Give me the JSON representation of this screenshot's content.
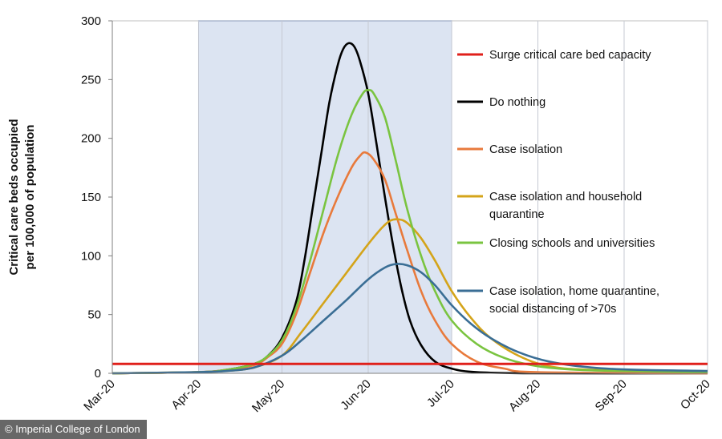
{
  "credit": "© Imperial College of London",
  "chart_data": {
    "type": "line",
    "title": "",
    "xlabel": "",
    "ylabel": [
      "Critical care beds occupied",
      "per 100,000 of population"
    ],
    "ylim": [
      0,
      300
    ],
    "yticks": [
      0,
      50,
      100,
      150,
      200,
      250,
      300
    ],
    "xlim": [
      "2020-03-01",
      "2020-10-01"
    ],
    "xticks": [
      {
        "label": "Mar-20",
        "date": "2020-03-01"
      },
      {
        "label": "Apr-20",
        "date": "2020-04-01"
      },
      {
        "label": "May-20",
        "date": "2020-05-01"
      },
      {
        "label": "Jun-20",
        "date": "2020-06-01"
      },
      {
        "label": "Jul-20",
        "date": "2020-07-01"
      },
      {
        "label": "Aug-20",
        "date": "2020-08-01"
      },
      {
        "label": "Sep-20",
        "date": "2020-09-01"
      },
      {
        "label": "Oct-20",
        "date": "2020-10-01"
      }
    ],
    "grid": {
      "vertical": true,
      "horizontal": false
    },
    "shaded_region": {
      "start": "2020-04-01",
      "end": "2020-07-01",
      "color": "#dce4f2"
    },
    "legend_position": "right",
    "series": [
      {
        "name": "Surge critical care bed capacity",
        "color": "#e0201b",
        "kind": "hline",
        "y": 8
      },
      {
        "name": "Do nothing",
        "color": "#000000",
        "points": [
          [
            "2020-03-01",
            0
          ],
          [
            "2020-04-01",
            1
          ],
          [
            "2020-04-11",
            3
          ],
          [
            "2020-04-21",
            8
          ],
          [
            "2020-04-26",
            15
          ],
          [
            "2020-05-01",
            30
          ],
          [
            "2020-05-06",
            60
          ],
          [
            "2020-05-09",
            95
          ],
          [
            "2020-05-12",
            140
          ],
          [
            "2020-05-15",
            185
          ],
          [
            "2020-05-18",
            230
          ],
          [
            "2020-05-21",
            262
          ],
          [
            "2020-05-23",
            276
          ],
          [
            "2020-05-25",
            281
          ],
          [
            "2020-05-27",
            278
          ],
          [
            "2020-05-29",
            266
          ],
          [
            "2020-06-01",
            238
          ],
          [
            "2020-06-04",
            195
          ],
          [
            "2020-06-07",
            150
          ],
          [
            "2020-06-10",
            108
          ],
          [
            "2020-06-13",
            72
          ],
          [
            "2020-06-16",
            45
          ],
          [
            "2020-06-20",
            24
          ],
          [
            "2020-06-25",
            10
          ],
          [
            "2020-07-01",
            4
          ],
          [
            "2020-07-10",
            1
          ],
          [
            "2020-08-01",
            0
          ],
          [
            "2020-10-01",
            0
          ]
        ]
      },
      {
        "name": "Case isolation",
        "color": "#e87a3c",
        "points": [
          [
            "2020-03-01",
            0
          ],
          [
            "2020-04-01",
            1
          ],
          [
            "2020-04-11",
            3
          ],
          [
            "2020-04-21",
            7
          ],
          [
            "2020-04-26",
            14
          ],
          [
            "2020-05-01",
            25
          ],
          [
            "2020-05-06",
            50
          ],
          [
            "2020-05-11",
            85
          ],
          [
            "2020-05-16",
            120
          ],
          [
            "2020-05-21",
            150
          ],
          [
            "2020-05-26",
            175
          ],
          [
            "2020-05-29",
            185
          ],
          [
            "2020-05-31",
            188
          ],
          [
            "2020-06-03",
            182
          ],
          [
            "2020-06-07",
            165
          ],
          [
            "2020-06-11",
            135
          ],
          [
            "2020-06-15",
            105
          ],
          [
            "2020-06-20",
            70
          ],
          [
            "2020-06-25",
            45
          ],
          [
            "2020-07-01",
            25
          ],
          [
            "2020-07-10",
            10
          ],
          [
            "2020-07-20",
            4
          ],
          [
            "2020-08-01",
            1
          ],
          [
            "2020-10-01",
            0
          ]
        ]
      },
      {
        "name": "Case isolation and household quarantine",
        "color": "#d4a41a",
        "points": [
          [
            "2020-03-01",
            0
          ],
          [
            "2020-04-01",
            1
          ],
          [
            "2020-04-11",
            2
          ],
          [
            "2020-04-21",
            5
          ],
          [
            "2020-05-01",
            15
          ],
          [
            "2020-05-08",
            35
          ],
          [
            "2020-05-16",
            60
          ],
          [
            "2020-05-24",
            85
          ],
          [
            "2020-06-01",
            110
          ],
          [
            "2020-06-06",
            124
          ],
          [
            "2020-06-09",
            130
          ],
          [
            "2020-06-12",
            131
          ],
          [
            "2020-06-15",
            128
          ],
          [
            "2020-06-20",
            115
          ],
          [
            "2020-06-25",
            96
          ],
          [
            "2020-07-01",
            70
          ],
          [
            "2020-07-08",
            47
          ],
          [
            "2020-07-15",
            30
          ],
          [
            "2020-07-25",
            15
          ],
          [
            "2020-08-05",
            6
          ],
          [
            "2020-08-20",
            3
          ],
          [
            "2020-10-01",
            1
          ]
        ]
      },
      {
        "name": "Closing schools and universities",
        "color": "#7ac440",
        "points": [
          [
            "2020-03-01",
            0
          ],
          [
            "2020-04-01",
            1
          ],
          [
            "2020-04-11",
            3
          ],
          [
            "2020-04-21",
            8
          ],
          [
            "2020-04-26",
            15
          ],
          [
            "2020-05-01",
            28
          ],
          [
            "2020-05-06",
            55
          ],
          [
            "2020-05-11",
            95
          ],
          [
            "2020-05-16",
            140
          ],
          [
            "2020-05-21",
            185
          ],
          [
            "2020-05-26",
            220
          ],
          [
            "2020-05-30",
            238
          ],
          [
            "2020-06-01",
            241
          ],
          [
            "2020-06-03",
            238
          ],
          [
            "2020-06-07",
            218
          ],
          [
            "2020-06-11",
            180
          ],
          [
            "2020-06-15",
            140
          ],
          [
            "2020-06-20",
            100
          ],
          [
            "2020-06-25",
            70
          ],
          [
            "2020-07-01",
            45
          ],
          [
            "2020-07-10",
            25
          ],
          [
            "2020-07-20",
            13
          ],
          [
            "2020-08-01",
            6
          ],
          [
            "2020-08-15",
            3
          ],
          [
            "2020-09-01",
            2
          ],
          [
            "2020-10-01",
            1
          ]
        ]
      },
      {
        "name": "Case isolation, home quarantine, social distancing of >70s",
        "color": "#3a6e95",
        "points": [
          [
            "2020-03-01",
            0
          ],
          [
            "2020-04-01",
            1
          ],
          [
            "2020-04-11",
            2
          ],
          [
            "2020-04-21",
            5
          ],
          [
            "2020-05-01",
            15
          ],
          [
            "2020-05-08",
            28
          ],
          [
            "2020-05-16",
            45
          ],
          [
            "2020-05-24",
            62
          ],
          [
            "2020-06-01",
            80
          ],
          [
            "2020-06-07",
            90
          ],
          [
            "2020-06-11",
            93
          ],
          [
            "2020-06-15",
            92
          ],
          [
            "2020-06-20",
            86
          ],
          [
            "2020-06-25",
            75
          ],
          [
            "2020-07-01",
            58
          ],
          [
            "2020-07-08",
            42
          ],
          [
            "2020-07-15",
            30
          ],
          [
            "2020-07-25",
            18
          ],
          [
            "2020-08-05",
            10
          ],
          [
            "2020-08-20",
            5
          ],
          [
            "2020-09-05",
            3
          ],
          [
            "2020-10-01",
            2
          ]
        ]
      }
    ],
    "legend_items": [
      {
        "lines": [
          "Surge critical care bed capacity"
        ],
        "color": "#e0201b"
      },
      {
        "lines": [
          "Do nothing"
        ],
        "color": "#000000"
      },
      {
        "lines": [
          "Case isolation"
        ],
        "color": "#e87a3c"
      },
      {
        "lines": [
          "Case isolation and household",
          "quarantine"
        ],
        "color": "#d4a41a"
      },
      {
        "lines": [
          "Closing schools and universities"
        ],
        "color": "#7ac440"
      },
      {
        "lines": [
          "Case isolation, home quarantine,",
          "social distancing of >70s"
        ],
        "color": "#3a6e95"
      }
    ]
  }
}
